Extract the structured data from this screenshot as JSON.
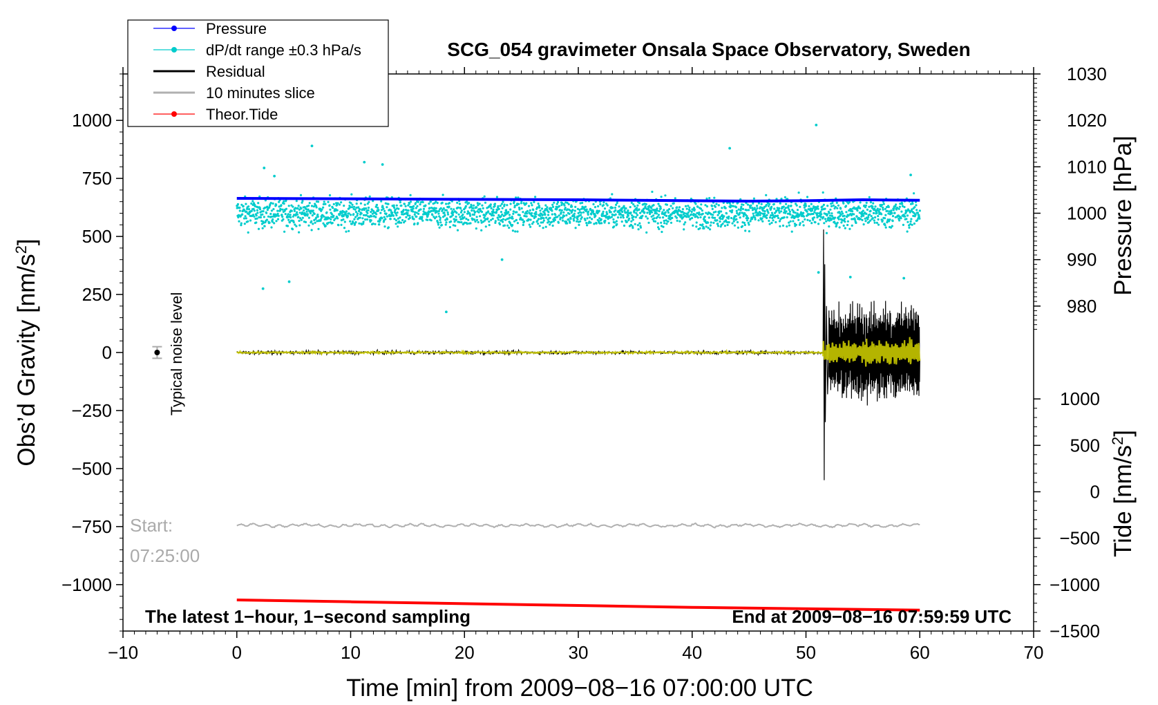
{
  "chart_data": {
    "type": "scatter",
    "title": "SCG_054 gravimeter Onsala Space Observatory, Sweden",
    "xlabel": "Time [min] from 2009−08−16 07:00:00 UTC",
    "ylabel_left": "Obs’d Gravity [nm/s²]",
    "ylabel_right_top": "Pressure [hPa]",
    "ylabel_right_bottom": "Tide [nm/s²]",
    "xlim": [
      -10,
      70
    ],
    "ylim_left": [
      -1200,
      1200
    ],
    "xticks": [
      -10,
      0,
      10,
      20,
      30,
      40,
      50,
      60,
      70
    ],
    "xtick_labels": [
      "−10",
      "0",
      "10",
      "20",
      "30",
      "40",
      "50",
      "60",
      "70"
    ],
    "yticks_left": [
      1000,
      750,
      500,
      250,
      0,
      -250,
      -500,
      -750,
      -1000
    ],
    "ytick_labels_left": [
      "1000",
      "750",
      "500",
      "250",
      "0",
      "−250",
      "−500",
      "−750",
      "−1000"
    ],
    "pressure_axis": {
      "ticks": [
        1030,
        1020,
        1010,
        1000,
        990,
        980
      ],
      "tick_labels": [
        "1030",
        "1020",
        "1010",
        "1000",
        "990",
        "980"
      ],
      "gravity_equivalent": [
        1200,
        1000,
        800,
        600,
        400,
        200
      ]
    },
    "tide_axis": {
      "ticks": [
        1000,
        500,
        0,
        -500,
        -1000,
        -1500
      ],
      "tick_labels": [
        "1000",
        "500",
        "0",
        "−500",
        "−1000",
        "−1500"
      ],
      "gravity_equivalent": [
        -200,
        -400,
        -600,
        -800,
        -1000,
        -1200
      ]
    },
    "legend": {
      "position": "top-left",
      "entries": [
        {
          "label": "Pressure",
          "color": "#0000ff",
          "marker": "dot"
        },
        {
          "label": "dP/dt range ±0.3 hPa/s",
          "color": "#00cccc",
          "marker": "dot"
        },
        {
          "label": "Residual",
          "color": "#000000",
          "marker": "line"
        },
        {
          "label": "10 minutes slice",
          "color": "#b0b0b0",
          "marker": "line"
        },
        {
          "label": "Theor.Tide",
          "color": "#ff0000",
          "marker": "dot"
        }
      ]
    },
    "series": [
      {
        "name": "Pressure",
        "axis": "pressure",
        "color": "#0000ff",
        "x": [
          0,
          10,
          20,
          30,
          40,
          45,
          50,
          55,
          60
        ],
        "y": [
          1003.2,
          1003.1,
          1003.0,
          1002.9,
          1002.7,
          1002.6,
          1002.7,
          1002.9,
          1002.8
        ]
      },
      {
        "name": "dP/dt range ±0.3 hPa/s",
        "axis": "gravity",
        "color": "#00cccc",
        "center": 600,
        "x_range": [
          0,
          60
        ],
        "outliers": [
          [
            2.3,
            275
          ],
          [
            2.4,
            795
          ],
          [
            3.3,
            760
          ],
          [
            4.6,
            305
          ],
          [
            6.6,
            890
          ],
          [
            11.2,
            820
          ],
          [
            12.8,
            810
          ],
          [
            18.4,
            175
          ],
          [
            23.3,
            400
          ],
          [
            43.3,
            880
          ],
          [
            50.9,
            980
          ],
          [
            51.1,
            345
          ],
          [
            53.9,
            325
          ],
          [
            58.6,
            320
          ],
          [
            59.2,
            765
          ]
        ]
      },
      {
        "name": "Residual",
        "axis": "gravity",
        "color": "#000000",
        "x": [
          0,
          10,
          20,
          30,
          40,
          50,
          51.3,
          51.5,
          51.55,
          51.6,
          51.7,
          51.8,
          52,
          53,
          54,
          55,
          56,
          57,
          58,
          59,
          60
        ],
        "y": [
          0,
          0,
          0,
          0,
          0,
          0,
          0,
          530,
          -550,
          400,
          -300,
          220,
          -200,
          200,
          -240,
          200,
          -200,
          200,
          -180,
          210,
          0
        ]
      },
      {
        "name": "Filtered residual",
        "axis": "gravity",
        "color": "#c8c800",
        "x": [
          0,
          30,
          51.5,
          52,
          55,
          58,
          60
        ],
        "y": [
          0,
          0,
          0,
          50,
          -40,
          40,
          20
        ]
      },
      {
        "name": "10 minutes slice",
        "axis": "gravity",
        "color": "#b0b0b0",
        "x": [
          0,
          60
        ],
        "y": [
          -745,
          -745
        ]
      },
      {
        "name": "Theor.Tide",
        "axis": "tide",
        "color": "#ff0000",
        "x": [
          0,
          10,
          20,
          30,
          40,
          50,
          60
        ],
        "y": [
          -1165,
          -1185,
          -1205,
          -1225,
          -1245,
          -1260,
          -1275
        ]
      }
    ],
    "noise_marker": {
      "x": -7,
      "y": 0,
      "err": 25,
      "label": "Typical noise level"
    },
    "annotations": {
      "start_label": "Start:",
      "start_time": "07:25:00",
      "bottom_left": "The latest 1−hour, 1−second sampling",
      "bottom_right": "End at 2009−08−16 07:59:59 UTC"
    }
  }
}
